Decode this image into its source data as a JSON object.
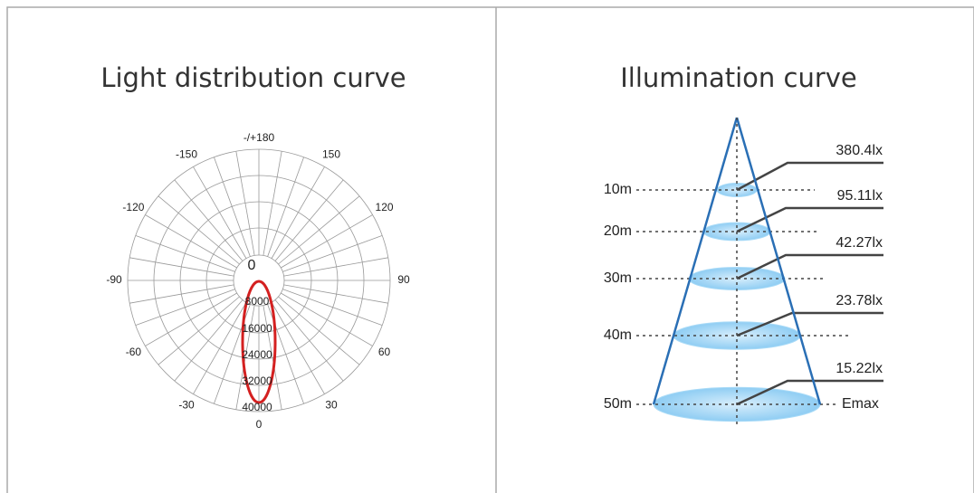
{
  "left_panel": {
    "title": "Light distribution curve",
    "angle_labels": [
      "-/+180",
      "150",
      "120",
      "90",
      "60",
      "30",
      "0",
      "-30",
      "-60",
      "-90",
      "-120",
      "-150"
    ],
    "ring_labels": [
      "0",
      "8000",
      "16000",
      "24000",
      "32000",
      "40000"
    ]
  },
  "right_panel": {
    "title": "Illumination curve",
    "levels": [
      {
        "distance": "10m",
        "illuminance": "380.4lx"
      },
      {
        "distance": "20m",
        "illuminance": "95.11lx"
      },
      {
        "distance": "30m",
        "illuminance": "42.27lx"
      },
      {
        "distance": "40m",
        "illuminance": "23.78lx"
      },
      {
        "distance": "50m",
        "illuminance": "15.22lx"
      }
    ],
    "emax_label": "Emax"
  }
}
